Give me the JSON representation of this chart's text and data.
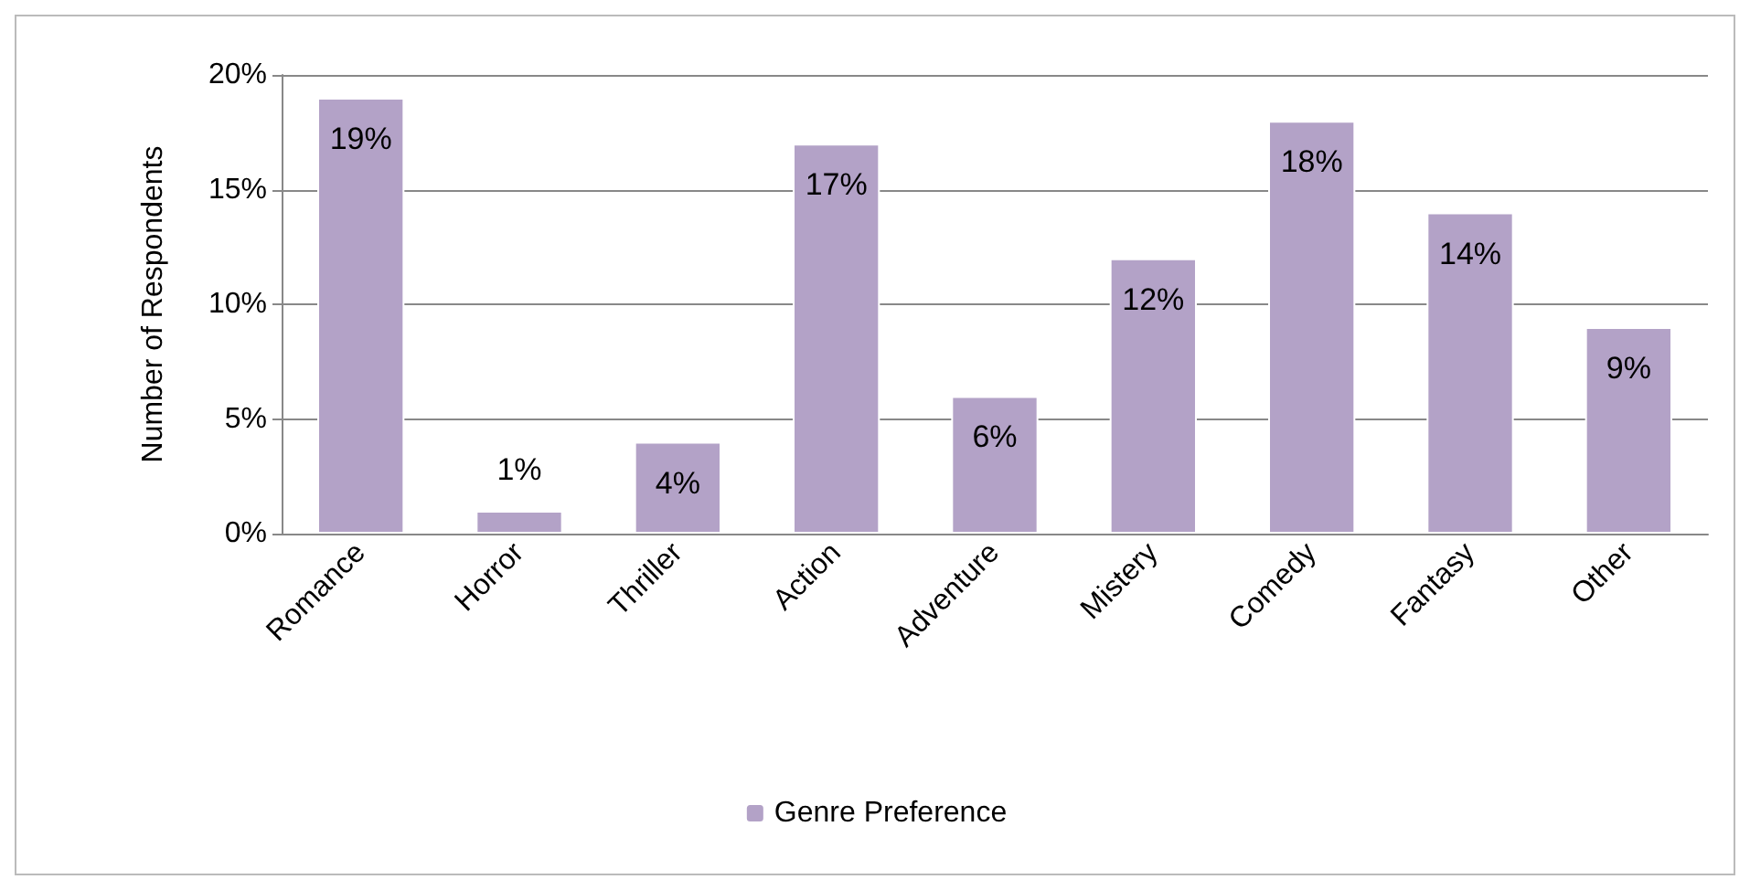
{
  "chart_data": {
    "type": "bar",
    "ylabel": "Number of Respondents",
    "categories": [
      "Romance",
      "Horror",
      "Thriller",
      "Action",
      "Adventure",
      "Mistery",
      "Comedy",
      "Fantasy",
      "Other"
    ],
    "series": [
      {
        "name": "Genre Preference",
        "color": "#b3a2c7",
        "values": [
          19,
          1,
          4,
          17,
          6,
          12,
          18,
          14,
          9
        ],
        "value_labels": [
          "19%",
          "1%",
          "4%",
          "17%",
          "6%",
          "12%",
          "18%",
          "14%",
          "9%"
        ]
      }
    ],
    "ylim": [
      0,
      20
    ],
    "yticks": [
      {
        "value": 0,
        "label": "0%"
      },
      {
        "value": 5,
        "label": "5%"
      },
      {
        "value": 10,
        "label": "10%"
      },
      {
        "value": 15,
        "label": "15%"
      },
      {
        "value": 20,
        "label": "20%"
      }
    ],
    "grid": "y",
    "legend": "bottom"
  }
}
